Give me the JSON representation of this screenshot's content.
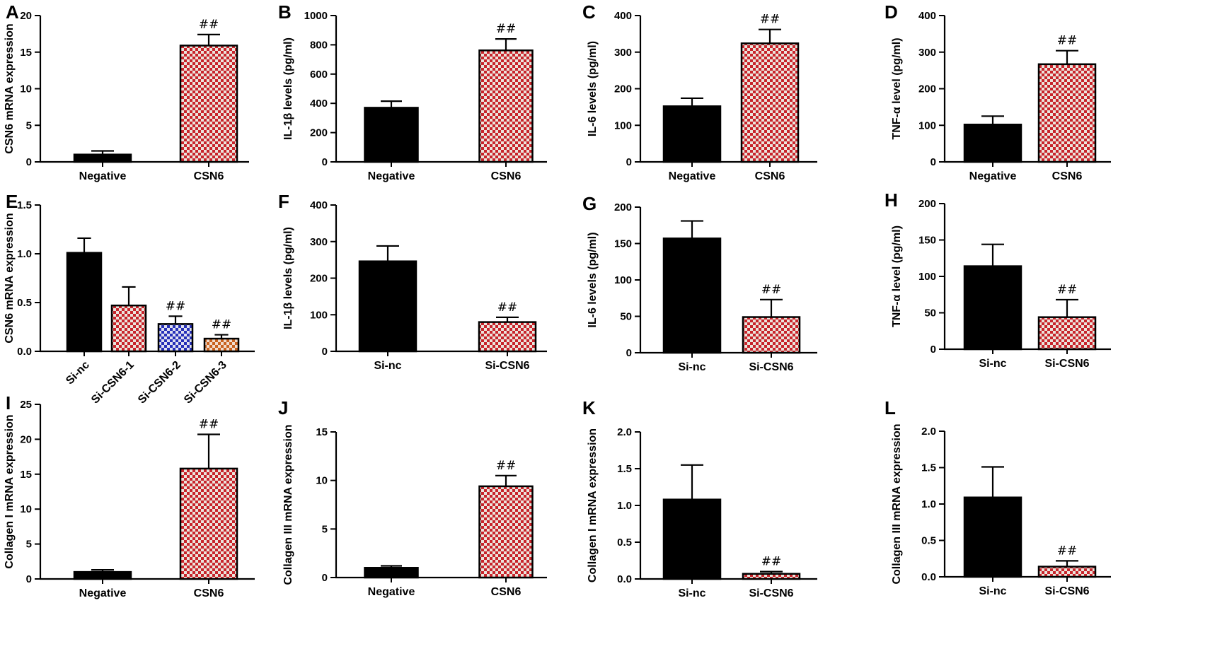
{
  "chart_data": [
    {
      "letter": "A",
      "type": "bar",
      "ylabel": "CSN6 mRNA expression",
      "ylim": [
        0,
        20
      ],
      "yticks": [
        "0",
        "5",
        "10",
        "15",
        "20"
      ],
      "tickvals": [
        0,
        5,
        10,
        15,
        20
      ],
      "categories": [
        "Negative",
        "CSN6"
      ],
      "values": [
        1.0,
        15.9
      ],
      "errors": [
        0.5,
        1.5
      ],
      "fills": [
        "solid",
        "red-check"
      ],
      "annotations": [
        "",
        "##"
      ]
    },
    {
      "letter": "B",
      "type": "bar",
      "ylabel": "IL-1β levels (pg/ml)",
      "ylim": [
        0,
        1000
      ],
      "yticks": [
        "0",
        "200",
        "400",
        "600",
        "800",
        "1000"
      ],
      "tickvals": [
        0,
        200,
        400,
        600,
        800,
        1000
      ],
      "categories": [
        "Negative",
        "CSN6"
      ],
      "values": [
        370,
        762
      ],
      "errors": [
        45,
        78
      ],
      "fills": [
        "solid",
        "red-check"
      ],
      "annotations": [
        "",
        "##"
      ]
    },
    {
      "letter": "C",
      "type": "bar",
      "ylabel": "IL-6 levels (pg/ml)",
      "ylim": [
        0,
        400
      ],
      "yticks": [
        "0",
        "100",
        "200",
        "300",
        "400"
      ],
      "tickvals": [
        0,
        100,
        200,
        300,
        400
      ],
      "categories": [
        "Negative",
        "CSN6"
      ],
      "values": [
        152,
        324
      ],
      "errors": [
        22,
        38
      ],
      "fills": [
        "solid",
        "red-check"
      ],
      "annotations": [
        "",
        "##"
      ]
    },
    {
      "letter": "D",
      "type": "bar",
      "ylabel": "TNF-α level (pg/ml)",
      "ylim": [
        0,
        400
      ],
      "yticks": [
        "0",
        "100",
        "200",
        "300",
        "400"
      ],
      "tickvals": [
        0,
        100,
        200,
        300,
        400
      ],
      "categories": [
        "Negative",
        "CSN6"
      ],
      "values": [
        102,
        267
      ],
      "errors": [
        23,
        37
      ],
      "fills": [
        "solid",
        "red-check"
      ],
      "annotations": [
        "",
        "##"
      ]
    },
    {
      "letter": "E",
      "type": "bar",
      "ylabel": "CSN6 mRNA expression",
      "ylim": [
        0,
        1.5
      ],
      "yticks": [
        "0.0",
        "0.5",
        "1.0",
        "1.5"
      ],
      "tickvals": [
        0,
        0.5,
        1.0,
        1.5
      ],
      "categories": [
        "Si-nc",
        "Si-CSN6-1",
        "Si-CSN6-2",
        "Si-CSN6-3"
      ],
      "values": [
        1.01,
        0.47,
        0.28,
        0.13
      ],
      "errors": [
        0.15,
        0.19,
        0.08,
        0.04
      ],
      "fills": [
        "solid",
        "red-check",
        "blue-check",
        "orange-check"
      ],
      "annotations": [
        "",
        "",
        "##",
        "##"
      ]
    },
    {
      "letter": "F",
      "type": "bar",
      "ylabel": "IL-1β levels (pg/ml)",
      "ylim": [
        0,
        400
      ],
      "yticks": [
        "0",
        "100",
        "200",
        "300",
        "400"
      ],
      "tickvals": [
        0,
        100,
        200,
        300,
        400
      ],
      "categories": [
        "Si-nc",
        "Si-CSN6"
      ],
      "values": [
        246,
        80
      ],
      "errors": [
        42,
        13
      ],
      "fills": [
        "solid",
        "red-check"
      ],
      "annotations": [
        "",
        "##"
      ]
    },
    {
      "letter": "G",
      "type": "bar",
      "ylabel": "IL-6 levels (pg/ml)",
      "ylim": [
        0,
        200
      ],
      "yticks": [
        "0",
        "50",
        "100",
        "150",
        "200"
      ],
      "tickvals": [
        0,
        50,
        100,
        150,
        200
      ],
      "categories": [
        "Si-nc",
        "Si-CSN6"
      ],
      "values": [
        157,
        49
      ],
      "errors": [
        24,
        24
      ],
      "fills": [
        "solid",
        "red-check"
      ],
      "annotations": [
        "",
        "##"
      ]
    },
    {
      "letter": "H",
      "type": "bar",
      "ylabel": "TNF-α level (pg/ml)",
      "ylim": [
        0,
        200
      ],
      "yticks": [
        "0",
        "50",
        "100",
        "150",
        "200"
      ],
      "tickvals": [
        0,
        50,
        100,
        150,
        200
      ],
      "categories": [
        "Si-nc",
        "Si-CSN6"
      ],
      "values": [
        114,
        44
      ],
      "errors": [
        30,
        24
      ],
      "fills": [
        "solid",
        "red-check"
      ],
      "annotations": [
        "",
        "##"
      ]
    },
    {
      "letter": "I",
      "type": "bar",
      "ylabel": "Collagen I mRNA expression",
      "ylim": [
        0,
        25
      ],
      "yticks": [
        "0",
        "5",
        "10",
        "15",
        "20",
        "25"
      ],
      "tickvals": [
        0,
        5,
        10,
        15,
        20,
        25
      ],
      "categories": [
        "Negative",
        "CSN6"
      ],
      "values": [
        1.0,
        15.8
      ],
      "errors": [
        0.3,
        4.9
      ],
      "fills": [
        "solid",
        "red-check"
      ],
      "annotations": [
        "",
        "##"
      ]
    },
    {
      "letter": "J",
      "type": "bar",
      "ylabel": "Collagen III mRNA expression",
      "ylim": [
        0,
        15
      ],
      "yticks": [
        "0",
        "5",
        "10",
        "15"
      ],
      "tickvals": [
        0,
        5,
        10,
        15
      ],
      "categories": [
        "Negative",
        "CSN6"
      ],
      "values": [
        1.0,
        9.4
      ],
      "errors": [
        0.2,
        1.1
      ],
      "fills": [
        "solid",
        "red-check"
      ],
      "annotations": [
        "",
        "##"
      ]
    },
    {
      "letter": "K",
      "type": "bar",
      "ylabel": "Collagen I mRNA expression",
      "ylim": [
        0,
        2.0
      ],
      "yticks": [
        "0.0",
        "0.5",
        "1.0",
        "1.5",
        "2.0"
      ],
      "tickvals": [
        0,
        0.5,
        1.0,
        1.5,
        2.0
      ],
      "categories": [
        "Si-nc",
        "Si-CSN6"
      ],
      "values": [
        1.08,
        0.07
      ],
      "errors": [
        0.47,
        0.03
      ],
      "fills": [
        "solid",
        "red-check"
      ],
      "annotations": [
        "",
        "##"
      ]
    },
    {
      "letter": "L",
      "type": "bar",
      "ylabel": "Collagen III mRNA expression",
      "ylim": [
        0,
        2.0
      ],
      "yticks": [
        "0.0",
        "0.5",
        "1.0",
        "1.5",
        "2.0"
      ],
      "tickvals": [
        0,
        0.5,
        1.0,
        1.5,
        2.0
      ],
      "categories": [
        "Si-nc",
        "Si-CSN6"
      ],
      "values": [
        1.09,
        0.14
      ],
      "errors": [
        0.42,
        0.08
      ],
      "fills": [
        "solid",
        "red-check"
      ],
      "annotations": [
        "",
        "##"
      ]
    }
  ],
  "colors": {
    "bar_solid": "#000000",
    "check_red": "#c8242b",
    "check_red_alt": "#ebe4dc",
    "check_blue": "#2630b8",
    "check_blue_alt": "#dfe0f0",
    "check_orange": "#c9621f",
    "check_orange_alt": "#f1dccd"
  }
}
